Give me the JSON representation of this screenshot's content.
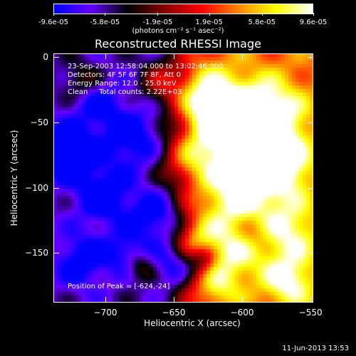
{
  "colorbar": {
    "tick_labels": [
      "-9.6e-05",
      "-5.8e-05",
      "-1.9e-05",
      "1.9e-05",
      "5.8e-05",
      "9.6e-05"
    ],
    "tick_values": [
      -9.6e-05,
      -5.8e-05,
      -1.9e-05,
      1.9e-05,
      5.8e-05,
      9.6e-05
    ],
    "range": [
      -9.6e-05,
      9.6e-05
    ],
    "units": "(photons cm⁻² s⁻¹ asec⁻²)",
    "colormap": [
      "#0000ff",
      "#6600ff",
      "#000000",
      "#880000",
      "#ff0000",
      "#ff8800",
      "#ffff00",
      "#ffffff"
    ]
  },
  "chart_data": {
    "type": "heatmap",
    "title": "Reconstructed RHESSI Image",
    "xlabel": "Heliocentric X (arcsec)",
    "ylabel": "Heliocentric Y (arcsec)",
    "xlim": [
      -738,
      -548
    ],
    "ylim": [
      -188,
      3
    ],
    "xticks": [
      -700,
      -650,
      -600,
      -550
    ],
    "yticks": [
      0,
      -50,
      -100,
      -150
    ],
    "peak": [
      -624,
      -24
    ],
    "annotations": [
      "23-Sep-2003 12:58:04.000 to 13:02:46.000",
      "Detectors: 4F 5F 6F 7F 8F, Att 0",
      "Energy Range: 12.0 - 25.0 keV",
      "Clean     Total counts: 2.22E+03",
      "Position of Peak = [-624,-24]"
    ]
  },
  "footer": {
    "date": "11-Jun-2013 13:53"
  }
}
